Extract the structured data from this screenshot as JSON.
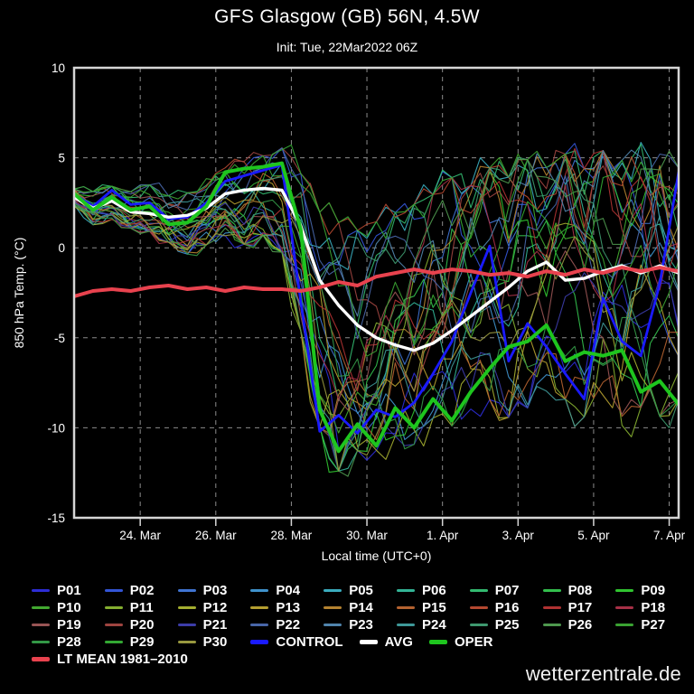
{
  "header": {
    "title": "GFS Glasgow (GB) 56N, 4.5W",
    "subtitle": "Init: Tue, 22Mar2022 06Z"
  },
  "watermark": "wetterzentrale.de",
  "colors": {
    "background": "#000000",
    "axis": "#d6d6d6",
    "grid": "#9b9b9b",
    "text": "#ffffff",
    "control": "#1a1aff",
    "avg": "#ffffff",
    "oper": "#1ec51e",
    "lt_mean": "#e8424e"
  },
  "chart_data": {
    "type": "line",
    "title": "GFS Glasgow (GB) 56N, 4.5W",
    "subtitle": "Init: Tue, 22Mar2022 06Z",
    "xlabel": "Local time (UTC+0)",
    "ylabel": "850 hPa Temp. (°C)",
    "ylim": [
      -15,
      10
    ],
    "yticks": [
      10,
      5,
      0,
      -5,
      -10,
      -15
    ],
    "grid": true,
    "legend_position": "bottom",
    "x_hours_range": [
      0,
      384
    ],
    "xticks": [
      {
        "hour": 42,
        "label": "24. Mar"
      },
      {
        "hour": 90,
        "label": "26. Mar"
      },
      {
        "hour": 138,
        "label": "28. Mar"
      },
      {
        "hour": 186,
        "label": "30. Mar"
      },
      {
        "hour": 234,
        "label": "1. Apr"
      },
      {
        "hour": 282,
        "label": "3. Apr"
      },
      {
        "hour": 330,
        "label": "5. Apr"
      },
      {
        "hour": 378,
        "label": "7. Apr"
      }
    ],
    "sample_hours": [
      0,
      12,
      24,
      36,
      48,
      60,
      72,
      84,
      96,
      108,
      120,
      132,
      144,
      156,
      168,
      180,
      192,
      204,
      216,
      228,
      240,
      252,
      264,
      276,
      288,
      300,
      312,
      324,
      336,
      348,
      360,
      372,
      384
    ],
    "series": [
      {
        "name": "CONTROL",
        "color": "#1a1aff",
        "width": 2.8,
        "values": [
          3.0,
          2.3,
          3.2,
          2.4,
          2.5,
          1.6,
          1.7,
          2.5,
          3.7,
          4.0,
          4.3,
          4.6,
          -3.0,
          -10.2,
          -9.3,
          -10.3,
          -9.0,
          -9.4,
          -8.6,
          -7.0,
          -5.2,
          -2.5,
          0.1,
          -6.3,
          -4.2,
          -5.5,
          -7.0,
          -8.4,
          -2.8,
          -5.2,
          -6.0,
          -2.0,
          4.2
        ]
      },
      {
        "name": "AVG",
        "color": "#ffffff",
        "width": 3.4,
        "values": [
          2.8,
          2.2,
          2.6,
          2.0,
          1.9,
          1.7,
          1.8,
          2.2,
          3.0,
          3.2,
          3.3,
          3.2,
          1.2,
          -1.8,
          -3.2,
          -4.3,
          -5.0,
          -5.4,
          -5.7,
          -5.3,
          -4.6,
          -3.8,
          -3.0,
          -2.2,
          -1.3,
          -0.8,
          -1.8,
          -1.7,
          -1.3,
          -1.0,
          -1.4,
          -1.0,
          -1.4
        ]
      },
      {
        "name": "OPER",
        "color": "#1ec51e",
        "width": 4.0,
        "values": [
          3.0,
          2.1,
          2.8,
          2.1,
          2.3,
          1.3,
          1.4,
          2.3,
          4.2,
          4.4,
          4.5,
          4.7,
          1.0,
          -9.0,
          -11.3,
          -9.8,
          -11.0,
          -8.9,
          -10.0,
          -8.4,
          -9.6,
          -8.0,
          -6.7,
          -5.5,
          -5.2,
          -4.3,
          -6.3,
          -5.8,
          -6.0,
          -5.7,
          -8.0,
          -7.4,
          -8.7
        ]
      },
      {
        "name": "LT MEAN 1981–2010",
        "color": "#e8424e",
        "width": 4.0,
        "values": [
          -2.7,
          -2.4,
          -2.3,
          -2.4,
          -2.2,
          -2.1,
          -2.3,
          -2.2,
          -2.4,
          -2.2,
          -2.3,
          -2.3,
          -2.4,
          -2.2,
          -1.9,
          -2.1,
          -1.6,
          -1.4,
          -1.2,
          -1.4,
          -1.2,
          -1.3,
          -1.5,
          -1.4,
          -1.6,
          -1.3,
          -1.5,
          -1.2,
          -1.4,
          -1.1,
          -1.3,
          -1.1,
          -1.3
        ]
      }
    ],
    "ensemble": {
      "members": [
        {
          "name": "P01",
          "color": "#2d2dd6"
        },
        {
          "name": "P02",
          "color": "#3355d6"
        },
        {
          "name": "P03",
          "color": "#3f74d2"
        },
        {
          "name": "P04",
          "color": "#3f92cc"
        },
        {
          "name": "P05",
          "color": "#3aacbe"
        },
        {
          "name": "P06",
          "color": "#33b496"
        },
        {
          "name": "P07",
          "color": "#33ba70"
        },
        {
          "name": "P08",
          "color": "#33bf4d"
        },
        {
          "name": "P09",
          "color": "#30c430"
        },
        {
          "name": "P10",
          "color": "#42a830"
        },
        {
          "name": "P11",
          "color": "#84ae30"
        },
        {
          "name": "P12",
          "color": "#a4ae30"
        },
        {
          "name": "P13",
          "color": "#b49e30"
        },
        {
          "name": "P14",
          "color": "#b48230"
        },
        {
          "name": "P15",
          "color": "#b46230"
        },
        {
          "name": "P16",
          "color": "#b44830"
        },
        {
          "name": "P17",
          "color": "#b03232"
        },
        {
          "name": "P18",
          "color": "#a63046"
        },
        {
          "name": "P19",
          "color": "#985454"
        },
        {
          "name": "P20",
          "color": "#9e4440"
        },
        {
          "name": "P21",
          "color": "#3c3ca8"
        },
        {
          "name": "P22",
          "color": "#4866a8"
        },
        {
          "name": "P23",
          "color": "#5084ac"
        },
        {
          "name": "P24",
          "color": "#3e9898"
        },
        {
          "name": "P25",
          "color": "#3e986e"
        },
        {
          "name": "P26",
          "color": "#4e984e"
        },
        {
          "name": "P27",
          "color": "#3aa232"
        },
        {
          "name": "P28",
          "color": "#339846"
        },
        {
          "name": "P29",
          "color": "#33a833"
        },
        {
          "name": "P30",
          "color": "#98983f"
        }
      ],
      "envelope_min": [
        2.2,
        1.2,
        1.5,
        1.0,
        0.8,
        0.2,
        -0.5,
        0.0,
        0.5,
        0.0,
        0.5,
        -0.5,
        -5.0,
        -10.5,
        -13.0,
        -11.8,
        -11.8,
        -11.0,
        -11.5,
        -10.0,
        -10.5,
        -9.5,
        -9.0,
        -10.0,
        -9.5,
        -8.5,
        -9.0,
        -10.0,
        -9.0,
        -10.5,
        -9.5,
        -10.0,
        -9.0
      ],
      "envelope_max": [
        3.4,
        3.2,
        3.5,
        3.2,
        3.6,
        3.0,
        3.2,
        4.0,
        4.8,
        5.0,
        5.3,
        5.8,
        4.5,
        2.5,
        2.0,
        1.5,
        2.0,
        2.5,
        3.0,
        3.5,
        4.5,
        4.0,
        5.0,
        4.5,
        5.5,
        5.0,
        5.8,
        5.0,
        6.0,
        5.5,
        6.5,
        6.0,
        5.0
      ]
    }
  }
}
